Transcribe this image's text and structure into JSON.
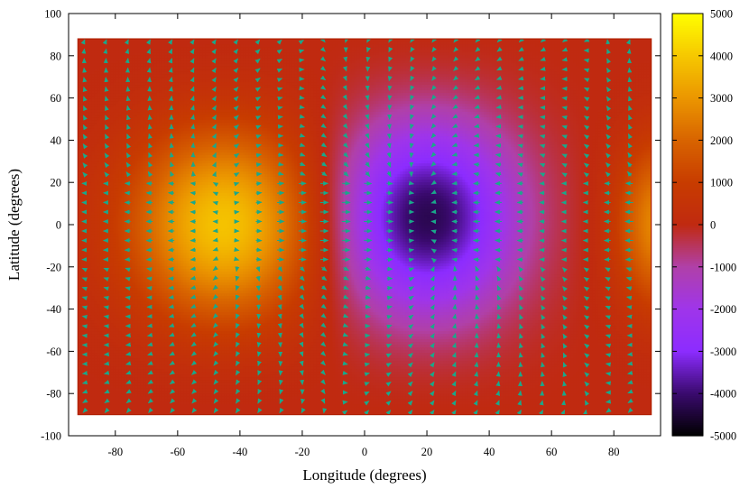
{
  "chart_data": {
    "type": "heatmap",
    "title": "",
    "xlabel": "Longitude (degrees)",
    "ylabel": "Latitude (degrees)",
    "xlim": [
      -95,
      95
    ],
    "ylim": [
      -100,
      100
    ],
    "x_ticks": [
      -80,
      -60,
      -40,
      -20,
      0,
      20,
      40,
      60,
      80
    ],
    "y_ticks": [
      -100,
      -80,
      -60,
      -40,
      -20,
      0,
      20,
      40,
      60,
      80,
      100
    ],
    "data_extent": {
      "lon": [
        -92,
        92
      ],
      "lat": [
        -90,
        88
      ]
    },
    "colorbar": {
      "range": [
        -5000,
        5000
      ],
      "ticks": [
        -5000,
        -4000,
        -3000,
        -2000,
        -1000,
        0,
        1000,
        2000,
        3000,
        4000,
        5000
      ],
      "palette": [
        [
          -5000,
          "#000000"
        ],
        [
          -4000,
          "#3a0a6e"
        ],
        [
          -3000,
          "#8c2cff"
        ],
        [
          -2000,
          "#9f35ea"
        ],
        [
          -1000,
          "#b040a8"
        ],
        [
          0,
          "#c02a10"
        ],
        [
          1000,
          "#c83c00"
        ],
        [
          2000,
          "#d86400"
        ],
        [
          3000,
          "#eb9600"
        ],
        [
          4000,
          "#f6c800"
        ],
        [
          5000,
          "#ffff00"
        ]
      ]
    },
    "field": {
      "description_values": "height anomaly; maximum about +3700 at (-45,0), minimum about -4200 at (20,5); near 0 at poles",
      "centers": [
        {
          "lon": -45,
          "lat": 0,
          "value": 3700
        },
        {
          "lon": 20,
          "lat": 5,
          "value": -4200
        },
        {
          "lon": 92,
          "lat": 0,
          "value": 2600
        }
      ]
    },
    "vector_field": {
      "color": "#1aa88a",
      "lon_step": 7,
      "lat_step": 4.5,
      "note": "arrows mostly zonal, pointing toward -x at low latitudes between lon -70 and 60, converging near lon 0"
    },
    "frame_color": "#000000",
    "data_border_color": "#b02000"
  }
}
